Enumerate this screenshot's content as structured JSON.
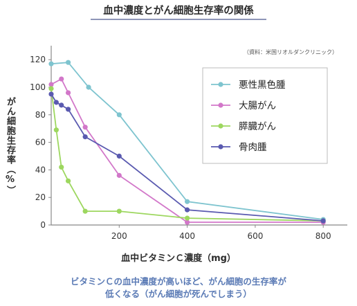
{
  "chart_data": {
    "type": "line",
    "title": "血中濃度とがん細胞生存率の関係",
    "source": "（資料：米国リオルダンクリニック）",
    "xlabel": "血中ビタミンＣ濃度（mg）",
    "ylabel": "がん細胞生存率（%）",
    "xlim": [
      0,
      840
    ],
    "ylim": [
      0,
      130
    ],
    "xticks": [
      200,
      400,
      600,
      800
    ],
    "yticks": [
      0,
      20,
      40,
      60,
      80,
      100,
      120
    ],
    "grid": false,
    "legend_position": "top-right",
    "series": [
      {
        "name": "悪性黒色腫",
        "color": "#7ec4cf",
        "points": [
          [
            0,
            117
          ],
          [
            50,
            118
          ],
          [
            110,
            100
          ],
          [
            200,
            80
          ],
          [
            400,
            17
          ],
          [
            800,
            4
          ]
        ]
      },
      {
        "name": "大腸がん",
        "color": "#d277c9",
        "points": [
          [
            0,
            102
          ],
          [
            30,
            106
          ],
          [
            50,
            96
          ],
          [
            100,
            71
          ],
          [
            200,
            36
          ],
          [
            400,
            2
          ],
          [
            800,
            2
          ]
        ]
      },
      {
        "name": "膵臓がん",
        "color": "#9dd75f",
        "points": [
          [
            0,
            99
          ],
          [
            15,
            69
          ],
          [
            30,
            42
          ],
          [
            50,
            32
          ],
          [
            100,
            10
          ],
          [
            200,
            10
          ],
          [
            400,
            5
          ],
          [
            800,
            3
          ]
        ]
      },
      {
        "name": "骨肉腫",
        "color": "#5a5ab0",
        "points": [
          [
            0,
            95
          ],
          [
            15,
            89
          ],
          [
            30,
            87
          ],
          [
            50,
            84
          ],
          [
            100,
            64
          ],
          [
            200,
            50
          ],
          [
            400,
            11
          ],
          [
            800,
            3
          ]
        ]
      }
    ]
  },
  "caption_line1": "ビタミンＣの血中濃度が高いほど、がん細胞の生存率が",
  "caption_line2": "低くなる（がん細胞が死んでしまう）"
}
